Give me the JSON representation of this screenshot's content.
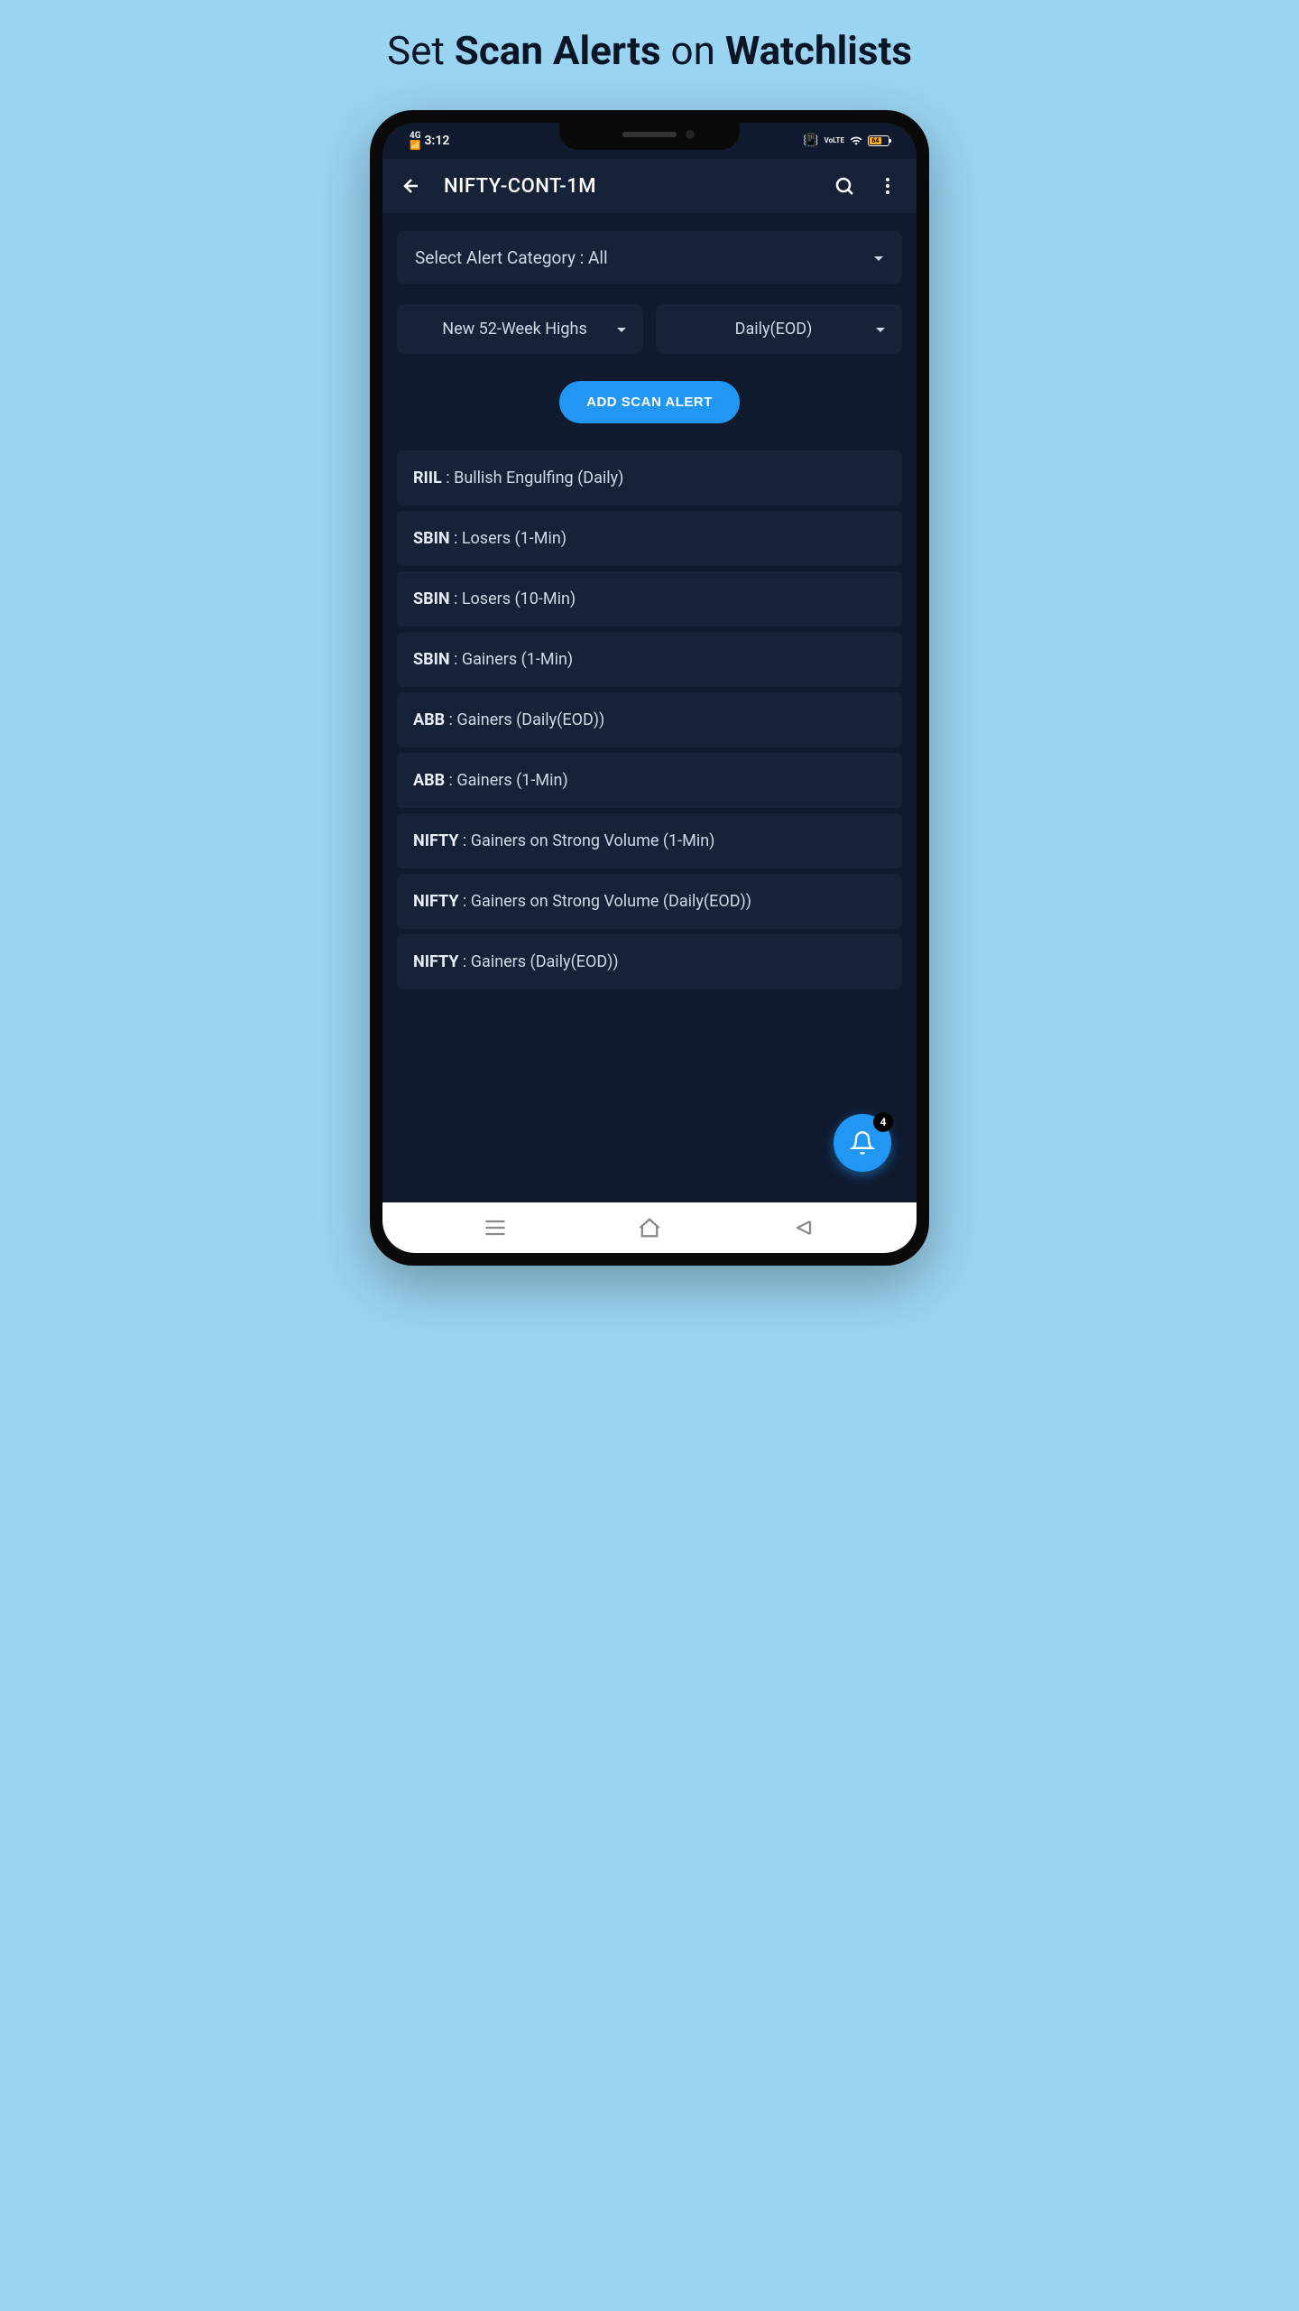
{
  "page_heading": {
    "part1": "Set ",
    "part2": "Scan Alerts",
    "part3": " on ",
    "part4": "Watchlists"
  },
  "status": {
    "network": "4G",
    "time": "3:12",
    "battery_level": "64"
  },
  "appbar": {
    "title": "NIFTY-CONT-1M"
  },
  "category_select": {
    "label": "Select Alert Category : All"
  },
  "dropdowns": {
    "scan_type": "New 52-Week Highs",
    "timeframe": "Daily(EOD)"
  },
  "add_button": "ADD SCAN ALERT",
  "alerts": [
    {
      "symbol": "RIIL",
      "desc": "Bullish Engulfing (Daily)"
    },
    {
      "symbol": "SBIN",
      "desc": "Losers (1-Min)"
    },
    {
      "symbol": "SBIN",
      "desc": "Losers (10-Min)"
    },
    {
      "symbol": "SBIN",
      "desc": "Gainers (1-Min)"
    },
    {
      "symbol": "ABB",
      "desc": "Gainers (Daily(EOD))"
    },
    {
      "symbol": "ABB",
      "desc": "Gainers (1-Min)"
    },
    {
      "symbol": "NIFTY",
      "desc": "Gainers on Strong Volume (1-Min)"
    },
    {
      "symbol": "NIFTY",
      "desc": "Gainers on Strong Volume (Daily(EOD))"
    },
    {
      "symbol": "NIFTY",
      "desc": "Gainers (Daily(EOD))"
    }
  ],
  "fab": {
    "badge": "4"
  },
  "colors": {
    "page_bg": "#9bd4f0",
    "screen_bg": "#0f1a2e",
    "card_bg": "#152238",
    "accent": "#2196f3",
    "text_primary": "#ffffff",
    "text_secondary": "#d0d8e5"
  }
}
